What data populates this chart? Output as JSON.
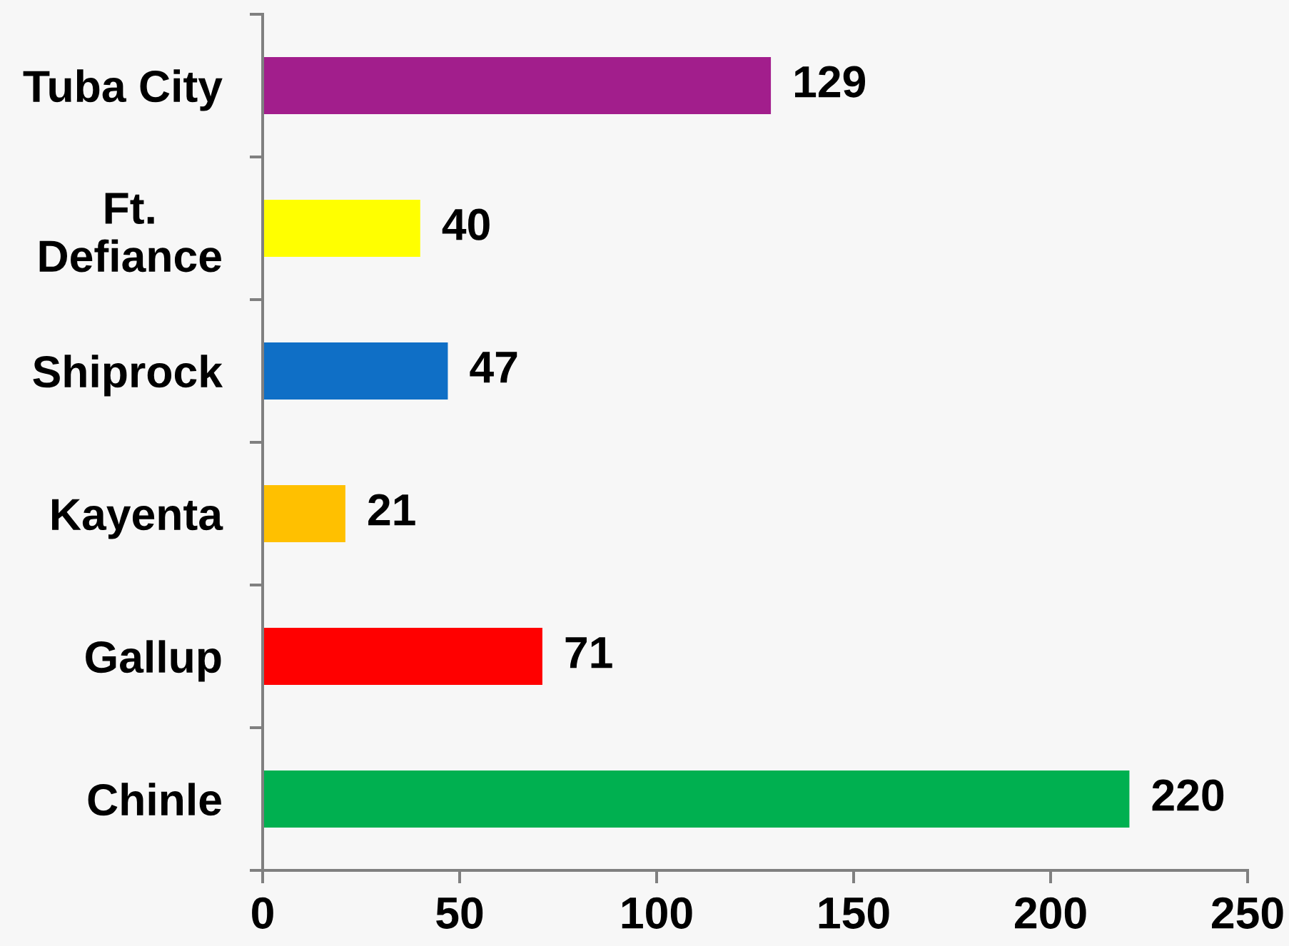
{
  "chart_data": {
    "type": "bar",
    "orientation": "horizontal",
    "categories": [
      "Tuba City",
      "Ft.\nDefiance",
      "Shiprock",
      "Kayenta",
      "Gallup",
      "Chinle"
    ],
    "values": [
      129,
      40,
      47,
      21,
      71,
      220
    ],
    "colors": [
      "#a21e8c",
      "#ffff00",
      "#0f6fc6",
      "#ffc000",
      "#ff0000",
      "#00b050"
    ],
    "xlim": [
      0,
      250
    ],
    "xticks": [
      0,
      50,
      100,
      150,
      200,
      250
    ],
    "data_labels": true,
    "grid": false,
    "legend": false
  }
}
